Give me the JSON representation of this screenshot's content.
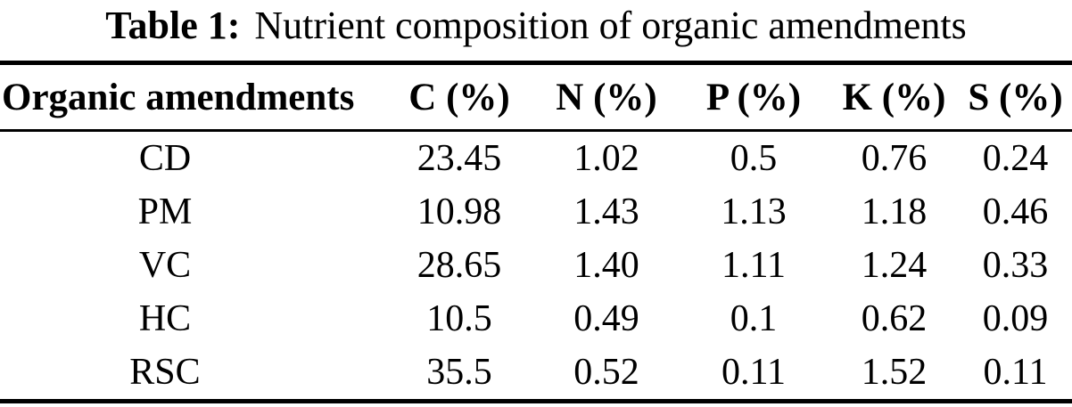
{
  "caption": {
    "label": "Table 1:",
    "text": "Nutrient composition of organic amendments"
  },
  "table": {
    "columns": [
      "Organic amendments",
      "C (%)",
      "N (%)",
      "P (%)",
      "K (%)",
      "S (%)"
    ],
    "rows": [
      {
        "amendment": "CD",
        "values": [
          "23.45",
          "1.02",
          "0.5",
          "0.76",
          "0.24"
        ]
      },
      {
        "amendment": "PM",
        "values": [
          "10.98",
          "1.43",
          "1.13",
          "1.18",
          "0.46"
        ]
      },
      {
        "amendment": "VC",
        "values": [
          "28.65",
          "1.40",
          "1.11",
          "1.24",
          "0.33"
        ]
      },
      {
        "amendment": "HC",
        "values": [
          "10.5",
          "0.49",
          "0.1",
          "0.62",
          "0.09"
        ]
      },
      {
        "amendment": "RSC",
        "values": [
          "35.5",
          "0.52",
          "0.11",
          "1.52",
          "0.11"
        ]
      }
    ]
  },
  "colors": {
    "background": "#ffffff",
    "text": "#000000",
    "rule": "#000000"
  }
}
